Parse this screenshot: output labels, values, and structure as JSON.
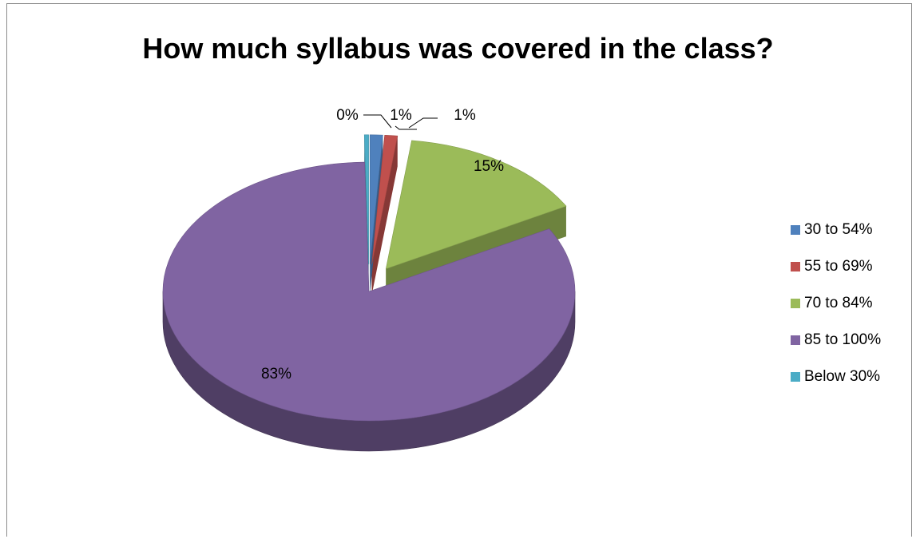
{
  "chart_data": {
    "type": "pie",
    "title": "How much syllabus was covered in the class?",
    "slices": [
      {
        "label": "30 to 54%",
        "value": 1,
        "data_label": "1%",
        "color": "#4f81bd"
      },
      {
        "label": "55 to 69%",
        "value": 1,
        "data_label": "1%",
        "color": "#c0504d"
      },
      {
        "label": "70 to 84%",
        "value": 15,
        "data_label": "15%",
        "color": "#9bbb59"
      },
      {
        "label": "85 to 100%",
        "value": 83,
        "data_label": "83%",
        "color": "#8064a2"
      },
      {
        "label": "Below 30%",
        "value": 0,
        "data_label": "0%",
        "color": "#4bacc6"
      }
    ],
    "legend": {
      "position": "right"
    },
    "style": "3d-exploded"
  }
}
